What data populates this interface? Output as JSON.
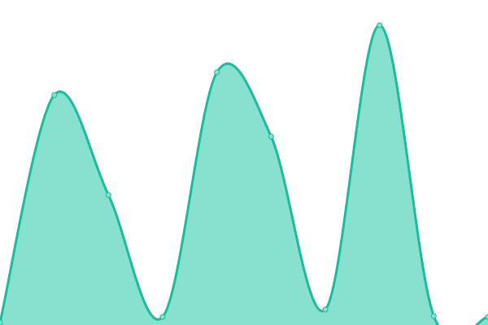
{
  "chart_data": {
    "type": "area",
    "title": "",
    "xlabel": "",
    "ylabel": "",
    "x": [
      0,
      1,
      2,
      3,
      4,
      5,
      6,
      7,
      8,
      9
    ],
    "series": [
      {
        "values": [
          3,
          283,
          160,
          10,
          311,
          232,
          19,
          369,
          11,
          10
        ]
      }
    ],
    "ylim": [
      0,
      400
    ],
    "grid": false,
    "axes_visible": false,
    "legend": "none",
    "colors": {
      "line": "#1abc9c",
      "fill": "#88e0ce",
      "marker_fill": "#88e0ce"
    }
  }
}
